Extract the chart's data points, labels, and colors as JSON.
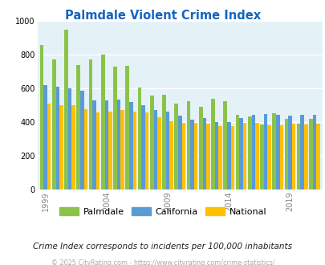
{
  "title": "Palmdale Violent Crime Index",
  "years": [
    1999,
    2000,
    2001,
    2002,
    2003,
    2004,
    2005,
    2006,
    2007,
    2008,
    2009,
    2010,
    2011,
    2012,
    2013,
    2014,
    2015,
    2016,
    2017,
    2018,
    2019,
    2020,
    2021
  ],
  "palmdale": [
    860,
    775,
    950,
    740,
    775,
    800,
    730,
    735,
    605,
    560,
    565,
    510,
    525,
    490,
    540,
    525,
    445,
    435,
    385,
    455,
    420,
    390,
    420
  ],
  "california": [
    620,
    610,
    600,
    585,
    530,
    530,
    535,
    520,
    500,
    470,
    465,
    440,
    415,
    425,
    400,
    400,
    425,
    445,
    450,
    445,
    440,
    445,
    445
  ],
  "national": [
    510,
    500,
    500,
    475,
    460,
    465,
    470,
    465,
    460,
    430,
    405,
    395,
    395,
    390,
    375,
    375,
    395,
    395,
    380,
    380,
    390,
    385,
    390
  ],
  "palmdale_color": "#8bc34a",
  "california_color": "#5b9bd5",
  "national_color": "#ffc000",
  "bg_color": "#e4f2f7",
  "title_color": "#1565c0",
  "footer_text": "Crime Index corresponds to incidents per 100,000 inhabitants",
  "copyright_text": "© 2025 CityRating.com - https://www.cityrating.com/crime-statistics/",
  "ylim": [
    0,
    1000
  ],
  "yticks": [
    0,
    200,
    400,
    600,
    800,
    1000
  ],
  "tick_years": [
    1999,
    2004,
    2009,
    2014,
    2019
  ]
}
